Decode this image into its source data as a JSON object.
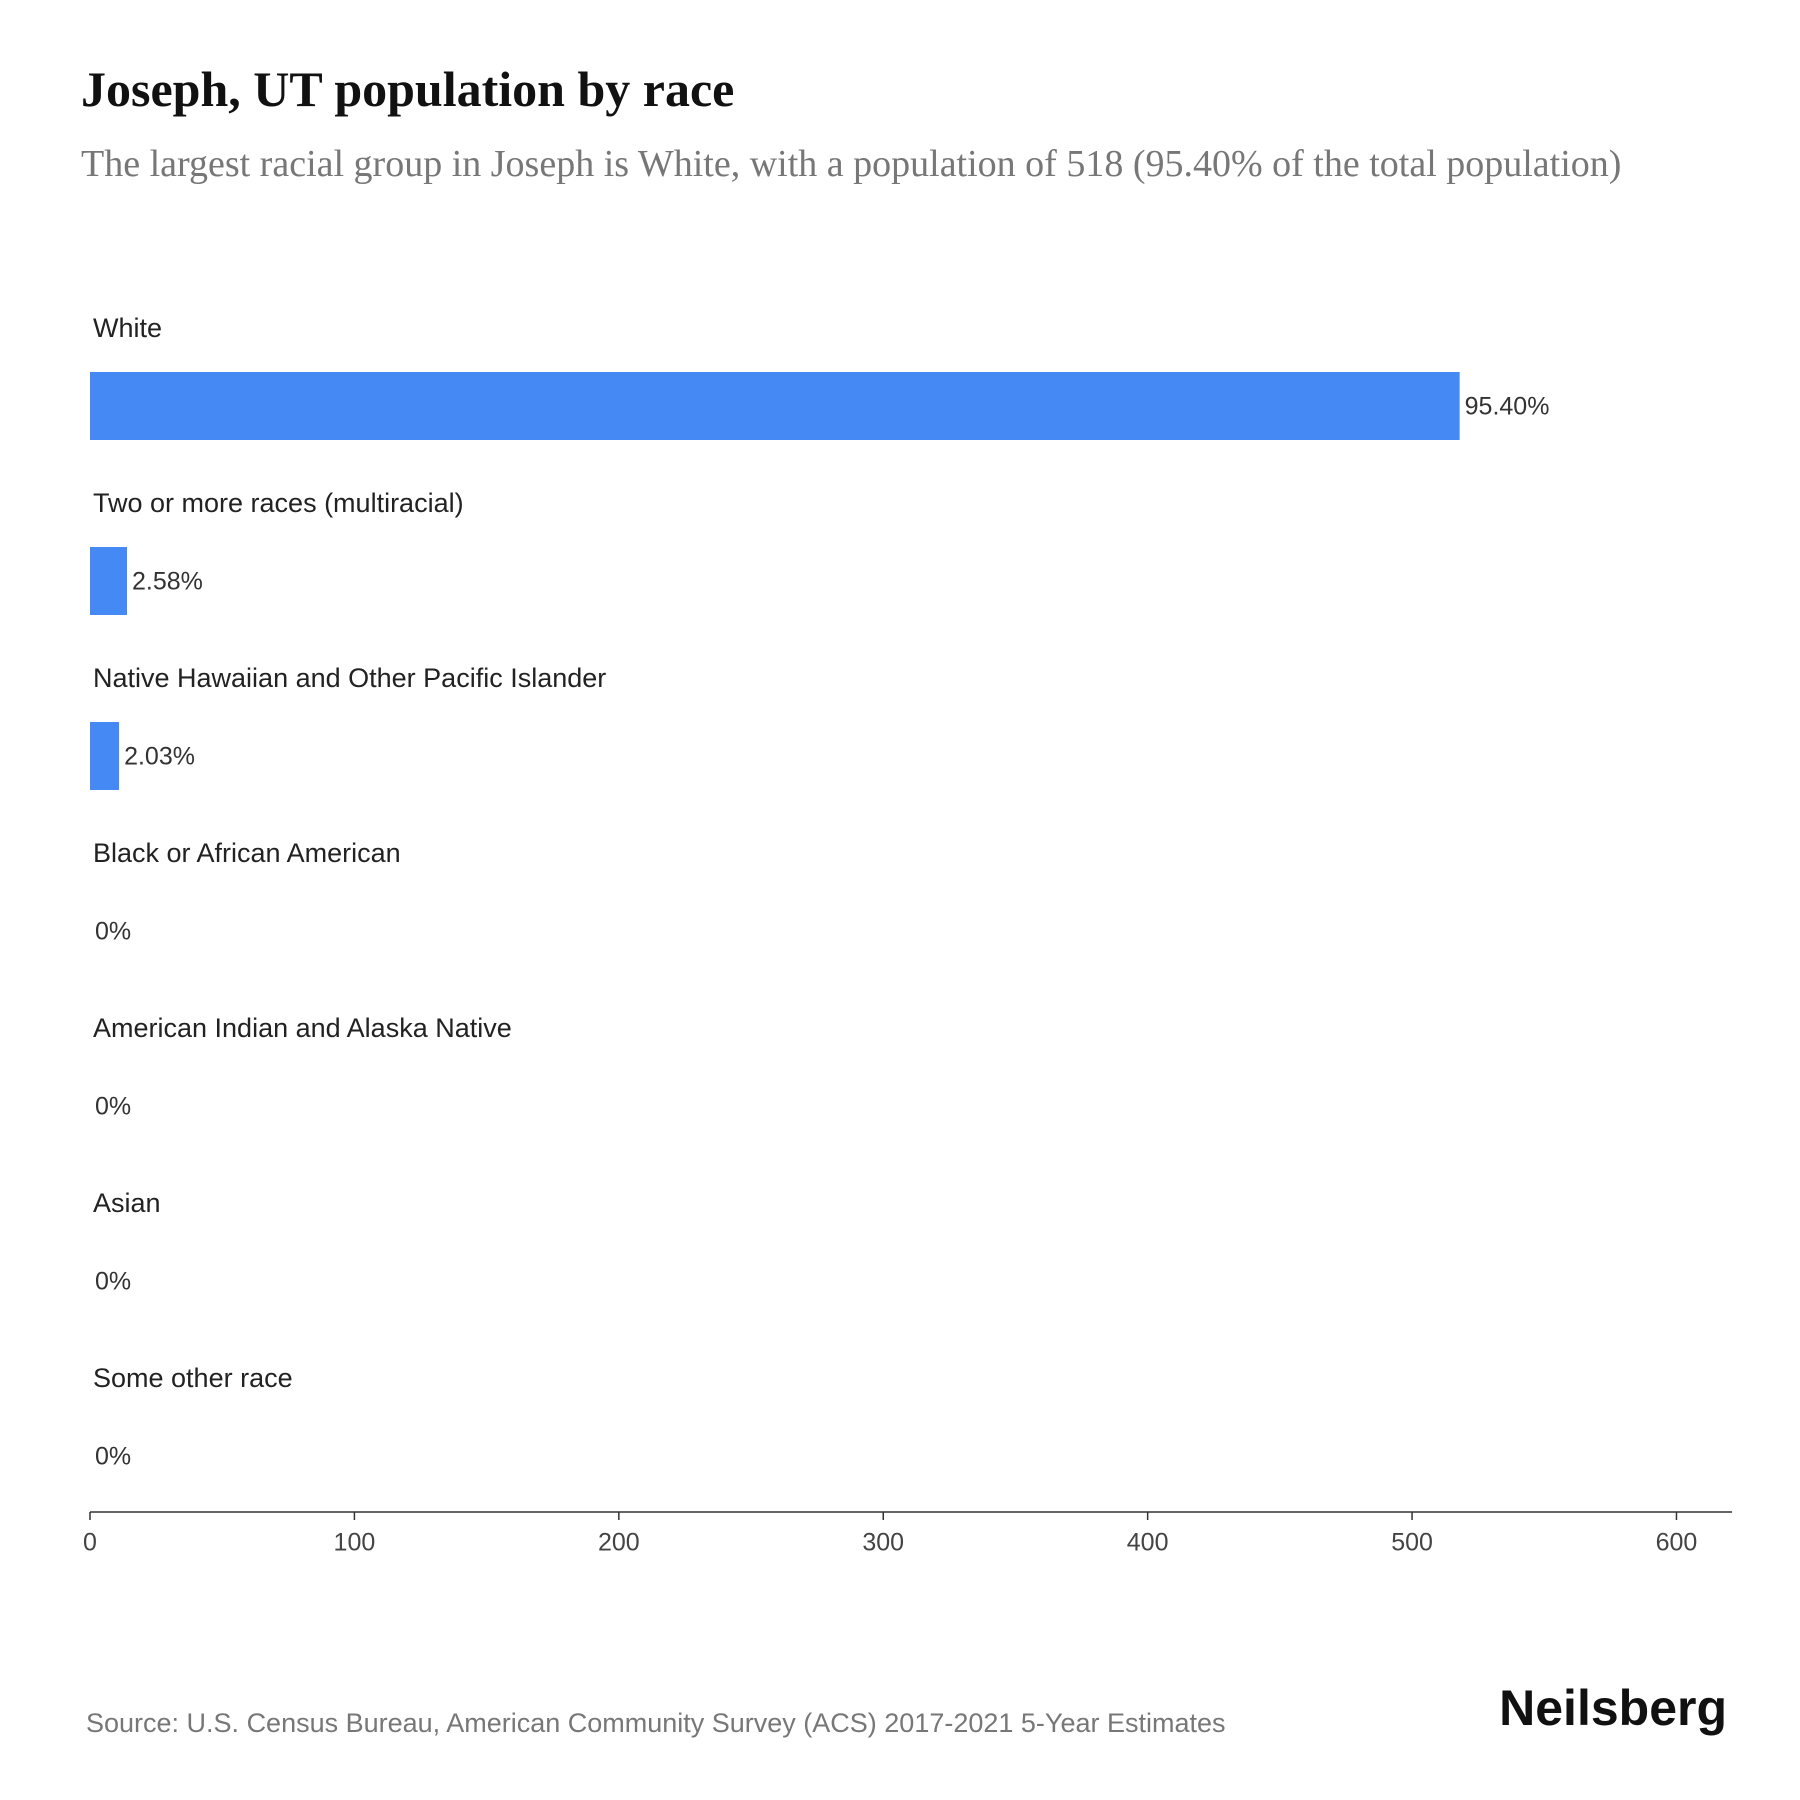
{
  "chart_data": {
    "type": "bar",
    "orientation": "horizontal",
    "title": "Joseph, UT population by race",
    "subtitle": "The largest racial group in Joseph is White, with a population of 518 (95.40% of the total population)",
    "categories": [
      "White",
      "Two or more races (multiracial)",
      "Native Hawaiian and Other Pacific Islander",
      "Black or African American",
      "American Indian and Alaska Native",
      "Asian",
      "Some other race"
    ],
    "values": [
      518,
      14,
      11,
      0,
      0,
      0,
      0
    ],
    "value_labels": [
      "95.40%",
      "2.58%",
      "2.03%",
      "0%",
      "0%",
      "0%",
      "0%"
    ],
    "color": "#4589f5",
    "xlim": [
      0,
      621
    ],
    "xticks": [
      0,
      100,
      200,
      300,
      400,
      500,
      600
    ],
    "source": "Source: U.S. Census Bureau, American Community Survey (ACS) 2017-2021 5-Year Estimates",
    "brand": "Neilsberg"
  }
}
